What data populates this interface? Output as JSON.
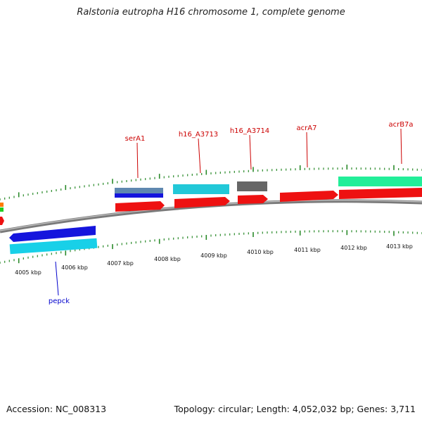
{
  "title": "Ralstonia eutropha H16 chromosome 1, complete genome",
  "footer": {
    "accession": "Accession: NC_008313",
    "summary": "Topology: circular; Length: 4,052,032 bp; Genes: 3,711"
  },
  "colors": {
    "backbone": "#8a8a8a",
    "tick": "#2a8a2a",
    "label_red": "#cc0000",
    "label_blue": "#0000cc",
    "red": "#ee1111",
    "blue": "#1515dd",
    "cyan": "#18d0e8",
    "teal": "#22b8c8",
    "steel": "#5f88b0",
    "gray": "#666666",
    "green": "#22ee99"
  },
  "scale": {
    "unit": "kbp",
    "labels": [
      "4005 kbp",
      "4006 kbp",
      "4007 kbp",
      "4008 kbp",
      "4009 kbp",
      "4010 kbp",
      "4011 kbp",
      "4012 kbp",
      "4013 kbp"
    ]
  },
  "gene_labels": [
    {
      "name": "serA1",
      "strand": "forward",
      "color": "#cc0000"
    },
    {
      "name": "h16_A3713",
      "strand": "forward",
      "color": "#cc0000"
    },
    {
      "name": "h16_A3714",
      "strand": "forward",
      "color": "#cc0000"
    },
    {
      "name": "acrA7",
      "strand": "forward",
      "color": "#cc0000"
    },
    {
      "name": "acrB7a",
      "strand": "forward",
      "color": "#cc0000"
    },
    {
      "name": "pepck",
      "strand": "reverse",
      "color": "#0000cc"
    }
  ]
}
